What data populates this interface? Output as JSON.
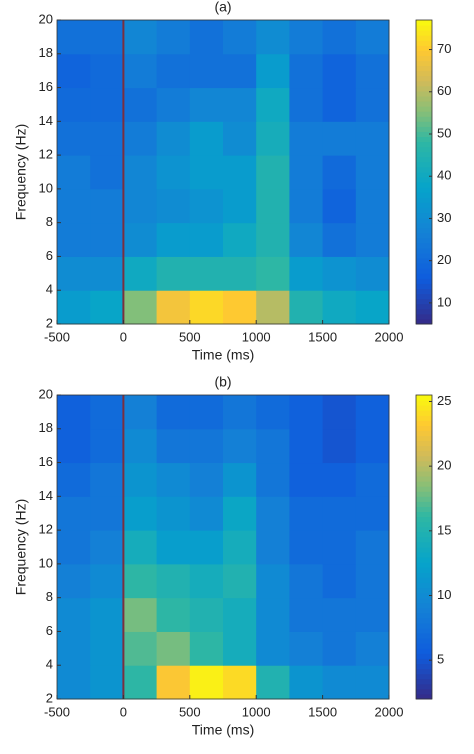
{
  "chart_data": [
    {
      "type": "heatmap",
      "title": "(a)",
      "x_label": "Time (ms)",
      "y_label": "Frequency (Hz)",
      "colormap": "parula",
      "x": [
        -375,
        -125,
        125,
        375,
        625,
        875,
        1125,
        1375,
        1625,
        1875
      ],
      "y": [
        3,
        5,
        7,
        9,
        11,
        13,
        15,
        17,
        19
      ],
      "z": [
        [
          35,
          38,
          55,
          68,
          72,
          70,
          60,
          45,
          40,
          38
        ],
        [
          30,
          30,
          40,
          45,
          45,
          45,
          48,
          35,
          32,
          30
        ],
        [
          25,
          25,
          30,
          35,
          35,
          40,
          45,
          28,
          22,
          25
        ],
        [
          25,
          25,
          28,
          30,
          32,
          35,
          45,
          25,
          18,
          25
        ],
        [
          25,
          22,
          28,
          32,
          35,
          35,
          45,
          25,
          20,
          25
        ],
        [
          22,
          22,
          25,
          30,
          35,
          30,
          42,
          25,
          25,
          25
        ],
        [
          20,
          20,
          22,
          25,
          28,
          28,
          40,
          22,
          18,
          22
        ],
        [
          18,
          20,
          25,
          22,
          22,
          22,
          35,
          22,
          18,
          22
        ],
        [
          22,
          22,
          28,
          25,
          22,
          25,
          30,
          25,
          22,
          25
        ]
      ],
      "xlim": [
        -500,
        2000
      ],
      "xticks": [
        -500,
        0,
        500,
        1000,
        1500,
        2000
      ],
      "ylim": [
        2,
        20
      ],
      "yticks": [
        2,
        4,
        6,
        8,
        10,
        12,
        14,
        16,
        18,
        20
      ],
      "clim": [
        5,
        77
      ],
      "cticks": [
        10,
        20,
        30,
        40,
        50,
        60,
        70
      ],
      "vline": {
        "x": 0,
        "color": "#7a2f3f"
      }
    },
    {
      "type": "heatmap",
      "title": "(b)",
      "x_label": "Time (ms)",
      "y_label": "Frequency (Hz)",
      "colormap": "parula",
      "x": [
        -375,
        -125,
        125,
        375,
        625,
        875,
        1125,
        1375,
        1625,
        1875
      ],
      "y": [
        3,
        5,
        7,
        9,
        11,
        13,
        15,
        17,
        19
      ],
      "z": [
        [
          10,
          11,
          16,
          23,
          25,
          24,
          15,
          11,
          10,
          10
        ],
        [
          10,
          11,
          17,
          18,
          16,
          14,
          10,
          9,
          8,
          9
        ],
        [
          10,
          11,
          18,
          16,
          15,
          14,
          10,
          8,
          8,
          8
        ],
        [
          9,
          10,
          16,
          15,
          14,
          15,
          10,
          8,
          7,
          8
        ],
        [
          8,
          9,
          14,
          12,
          12,
          14,
          9,
          7,
          7,
          8
        ],
        [
          8,
          8,
          12,
          11,
          10,
          13,
          9,
          7,
          7,
          7
        ],
        [
          7,
          8,
          11,
          10,
          9,
          11,
          8,
          6,
          6,
          7
        ],
        [
          6,
          7,
          10,
          8,
          8,
          9,
          8,
          6,
          5,
          6
        ],
        [
          6,
          7,
          9,
          7,
          7,
          8,
          7,
          6,
          5,
          6
        ]
      ],
      "xlim": [
        -500,
        2000
      ],
      "xticks": [
        -500,
        0,
        500,
        1000,
        1500,
        2000
      ],
      "ylim": [
        2,
        20
      ],
      "yticks": [
        2,
        4,
        6,
        8,
        10,
        12,
        14,
        16,
        18,
        20
      ],
      "clim": [
        2,
        25.5
      ],
      "cticks": [
        5,
        10,
        15,
        20,
        25
      ],
      "vline": {
        "x": 0,
        "color": "#7a2f3f"
      }
    }
  ]
}
